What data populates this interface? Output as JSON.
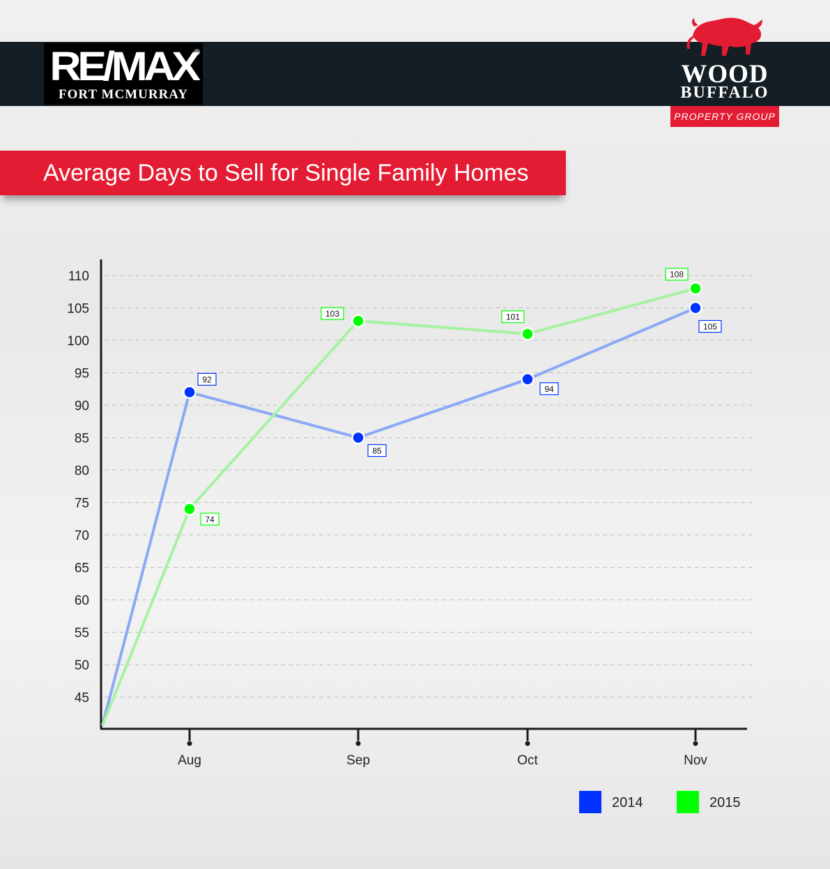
{
  "header": {
    "remax": {
      "word": "RE/MAX",
      "registered": "®",
      "city": "FORT MCMURRAY"
    },
    "woodbuffalo": {
      "line1": "WOOD",
      "line2": "BUFFALO",
      "sub": "PROPERTY GROUP"
    }
  },
  "colors": {
    "brand_red": "#e31c33",
    "header_dark": "#141e24",
    "series_2014": "#0033ff",
    "series_2015": "#00ff00"
  },
  "chart_data": {
    "type": "line",
    "title": "Average Days to Sell for Single Family Homes",
    "categories": [
      "Aug",
      "Sep",
      "Oct",
      "Nov"
    ],
    "series": [
      {
        "name": "2014",
        "values": [
          92,
          85,
          94,
          105
        ],
        "labels": [
          "92",
          "85",
          "94",
          "105"
        ],
        "color": "#0033ff",
        "line_color": "#8aa9f5"
      },
      {
        "name": "2015",
        "values": [
          74,
          103,
          101,
          108
        ],
        "labels": [
          "74",
          "103",
          "101",
          "108"
        ],
        "color": "#00ff00",
        "line_color": "#a6f2a2"
      }
    ],
    "yticks": [
      "110",
      "105",
      "100",
      "95",
      "90",
      "85",
      "80",
      "75",
      "70",
      "65",
      "60",
      "55",
      "50",
      "45"
    ],
    "ylim": [
      40,
      110
    ],
    "grid": true,
    "legend": "bottom-right"
  }
}
